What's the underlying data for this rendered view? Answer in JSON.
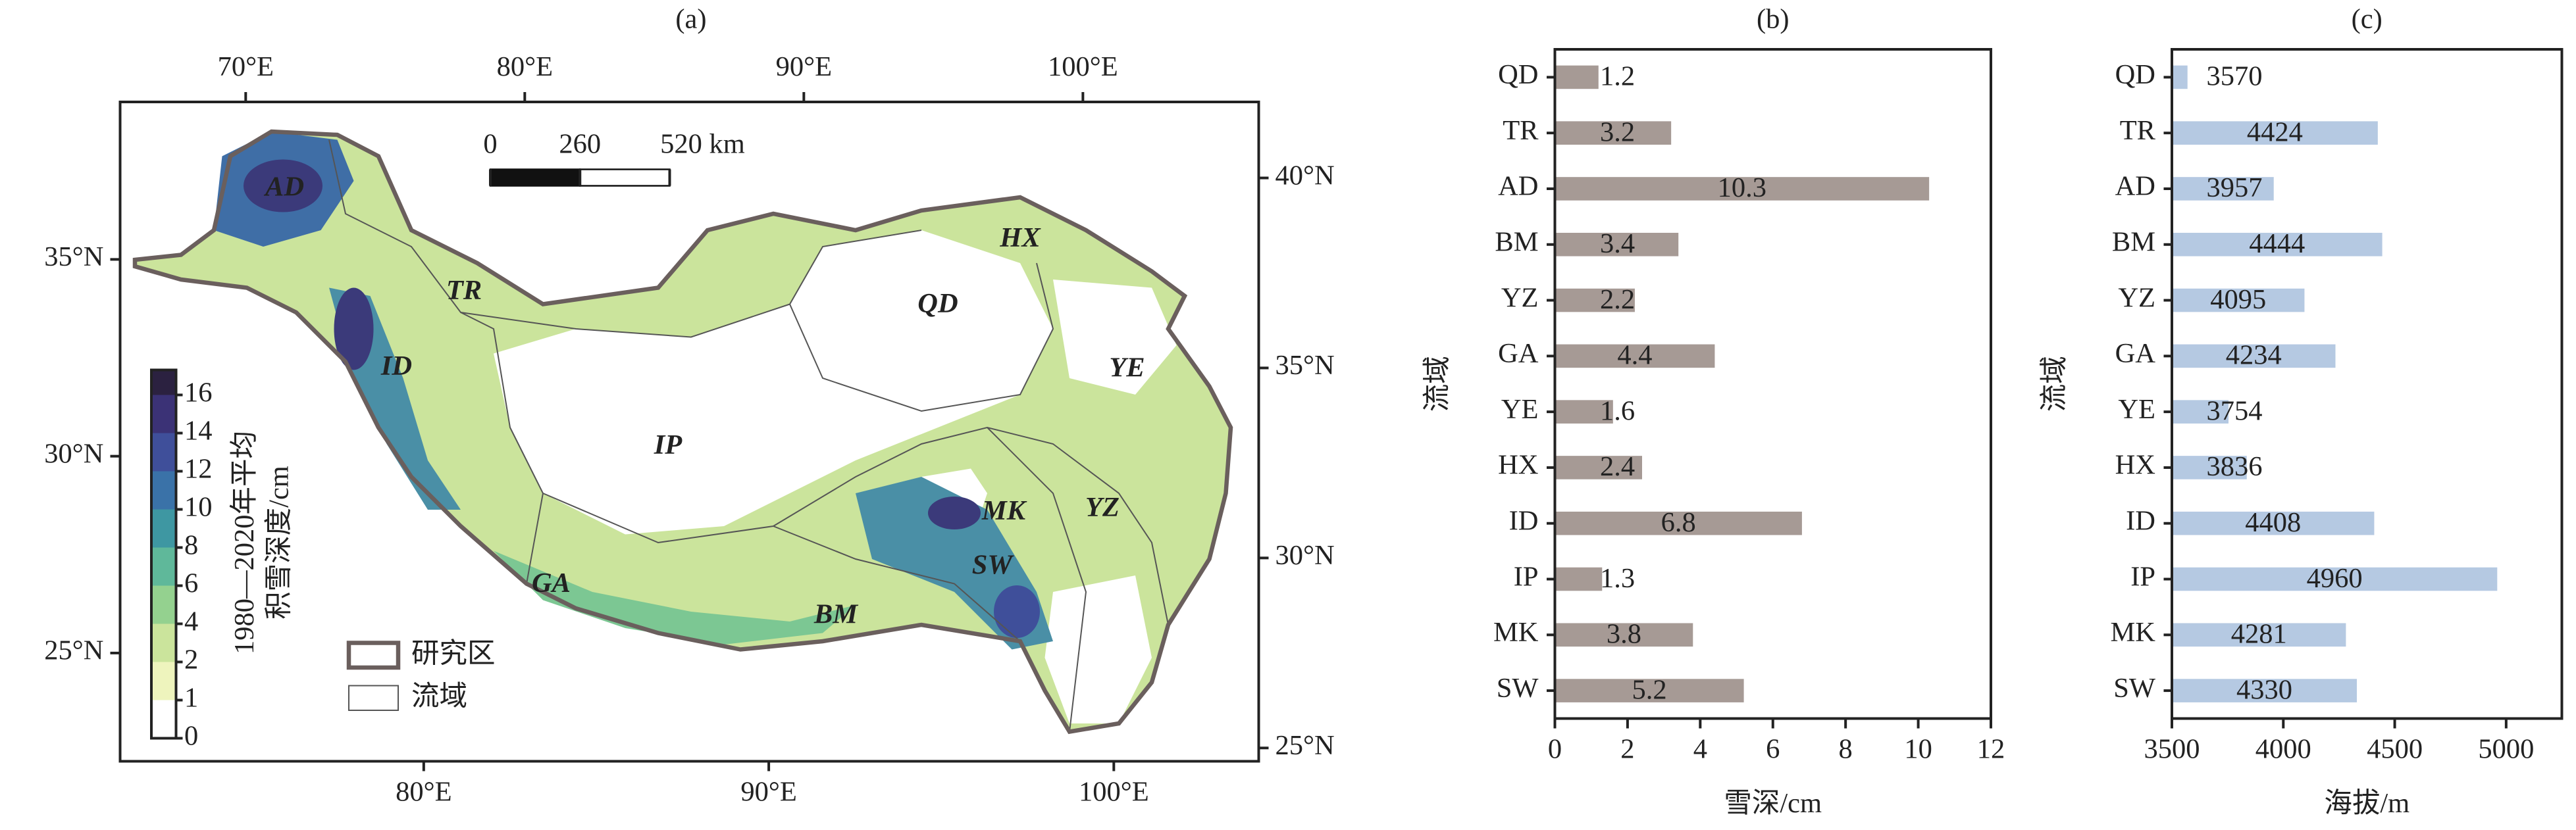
{
  "chart_data": [
    {
      "type": "map",
      "title": "(a)",
      "top_xlim": [
        65.5,
        106.3
      ],
      "top_xticks": [
        {
          "value": 70,
          "label": "70°E"
        },
        {
          "value": 80,
          "label": "80°E"
        },
        {
          "value": 90,
          "label": "90°E"
        },
        {
          "value": 100,
          "label": "100°E"
        }
      ],
      "bottom_xlim": [
        71.2,
        104.2
      ],
      "bottom_xticks": [
        {
          "value": 80,
          "label": "80°E"
        },
        {
          "value": 90,
          "label": "90°E"
        },
        {
          "value": 100,
          "label": "100°E"
        }
      ],
      "left_ylim": [
        22.25,
        39
      ],
      "left_yticks": [
        {
          "value": 35,
          "label": "35°N"
        },
        {
          "value": 30,
          "label": "30°N"
        },
        {
          "value": 25,
          "label": "25°N"
        }
      ],
      "right_ylim": [
        24.65,
        42
      ],
      "right_yticks": [
        {
          "value": 40,
          "label": "40°N"
        },
        {
          "value": 35,
          "label": "35°N"
        },
        {
          "value": 30,
          "label": "30°N"
        },
        {
          "value": 25,
          "label": "25°N"
        }
      ],
      "basins": [
        "AD",
        "TR",
        "ID",
        "QD",
        "HX",
        "YE",
        "IP",
        "MK",
        "YZ",
        "GA",
        "SW",
        "BM"
      ],
      "scale_bar": [
        {
          "value": 0,
          "label": "0"
        },
        {
          "value": 260,
          "label": "260"
        },
        {
          "value": 520,
          "label": "520 km"
        }
      ],
      "legend": [
        "研究区",
        "流域"
      ],
      "colorbar": {
        "label_lines": [
          "1980—2020年平均",
          "积雪深度/cm"
        ],
        "ticks": [
          0,
          1,
          2,
          4,
          6,
          8,
          10,
          12,
          14,
          16
        ],
        "colors": [
          "#ffffff",
          "#eef4bd",
          "#cbe49c",
          "#94d18f",
          "#5fb89a",
          "#3e97a2",
          "#3a72a8",
          "#3f4f9a",
          "#3b3276",
          "#2b2140"
        ]
      }
    },
    {
      "type": "bar",
      "orientation": "horizontal",
      "title": "(b)",
      "xlabel": "雪深/cm",
      "ylabel": "流域",
      "color": "#a69a95",
      "categories": [
        "QD",
        "TR",
        "AD",
        "BM",
        "YZ",
        "GA",
        "YE",
        "HX",
        "ID",
        "IP",
        "MK",
        "SW"
      ],
      "values": [
        1.2,
        3.2,
        10.3,
        3.4,
        2.2,
        4.4,
        1.6,
        2.4,
        6.8,
        1.3,
        3.8,
        5.2
      ],
      "xlim": [
        0,
        12
      ],
      "xticks": [
        0,
        2,
        4,
        6,
        8,
        10,
        12
      ]
    },
    {
      "type": "bar",
      "orientation": "horizontal",
      "title": "(c)",
      "xlabel": "海拔/m",
      "ylabel": "流域",
      "color": "#b5c9e2",
      "categories": [
        "QD",
        "TR",
        "AD",
        "BM",
        "YZ",
        "GA",
        "YE",
        "HX",
        "ID",
        "IP",
        "MK",
        "SW"
      ],
      "values": [
        3570,
        4424,
        3957,
        4444,
        4095,
        4234,
        3754,
        3836,
        4408,
        4960,
        4281,
        4330
      ],
      "xlim": [
        3500,
        5250
      ],
      "xticks": [
        3500,
        4000,
        4500,
        5000
      ]
    }
  ]
}
